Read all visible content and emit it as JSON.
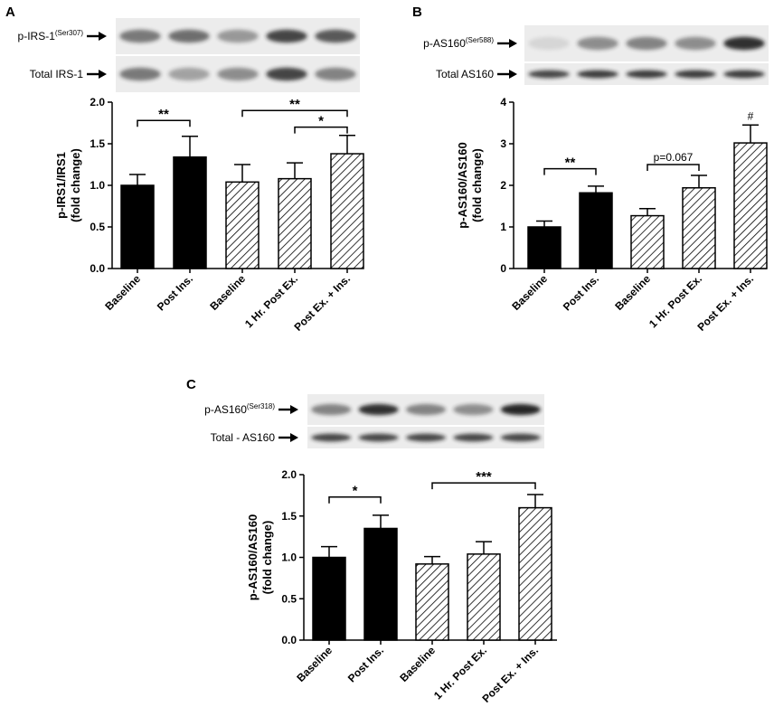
{
  "colors": {
    "solid": "#000000",
    "hatch": "#000000",
    "blot_bg": "#ececec",
    "band": "#1a1a1a"
  },
  "chart_data": [
    {
      "panel": "A",
      "type": "bar",
      "categories": [
        "Baseline",
        "Post Ins.",
        "Baseline",
        "1 Hr. Post Ex.",
        "Post Ex. + Ins."
      ],
      "values": [
        1.0,
        1.34,
        1.04,
        1.08,
        1.38
      ],
      "errors": [
        0.13,
        0.25,
        0.21,
        0.19,
        0.22
      ],
      "fills": [
        "solid",
        "solid",
        "hatch",
        "hatch",
        "hatch"
      ],
      "ylabel_line1": "p-IRS1/IRS1",
      "ylabel_line2": "(fold change)",
      "ylim": [
        0,
        2.0
      ],
      "yticks": [
        "0.0",
        "0.5",
        "1.0",
        "1.5",
        "2.0"
      ],
      "blots": [
        {
          "label": "p-IRS-1",
          "sup": "(Ser307)",
          "intensities": [
            0.55,
            0.6,
            0.4,
            0.8,
            0.7
          ]
        },
        {
          "label": "Total IRS-1",
          "sup": "",
          "intensities": [
            0.55,
            0.35,
            0.45,
            0.8,
            0.5
          ]
        }
      ],
      "significance": [
        {
          "from": 0,
          "to": 1,
          "label": "**",
          "level": 1.78
        },
        {
          "from": 2,
          "to": 4,
          "label": "**",
          "level": 1.9
        },
        {
          "from": 3,
          "to": 4,
          "label": "*",
          "level": 1.7
        }
      ]
    },
    {
      "panel": "B",
      "type": "bar",
      "categories": [
        "Baseline",
        "Post Ins.",
        "Baseline",
        "1 Hr. Post Ex.",
        "Post Ex. + Ins."
      ],
      "values": [
        1.0,
        1.82,
        1.27,
        1.94,
        3.02
      ],
      "errors": [
        0.14,
        0.16,
        0.17,
        0.3,
        0.43
      ],
      "fills": [
        "solid",
        "solid",
        "hatch",
        "hatch",
        "hatch"
      ],
      "ylabel_line1": "p-AS160/AS160",
      "ylabel_line2": "(fold change)",
      "ylim": [
        0,
        4
      ],
      "yticks": [
        "0",
        "1",
        "2",
        "3",
        "4"
      ],
      "blots": [
        {
          "label": "p-AS160",
          "sup": "(Ser588)",
          "intensities": [
            0.1,
            0.45,
            0.5,
            0.45,
            0.9
          ]
        },
        {
          "label": "Total AS160",
          "sup": "",
          "intensities": [
            0.8,
            0.85,
            0.85,
            0.85,
            0.85
          ]
        }
      ],
      "significance": [
        {
          "from": 0,
          "to": 1,
          "label": "**",
          "level": 2.4
        },
        {
          "from": 2,
          "to": 3,
          "label": "p=0.067",
          "level": 2.5
        }
      ],
      "annotations": [
        {
          "bar": 4,
          "label": "#"
        }
      ]
    },
    {
      "panel": "C",
      "type": "bar",
      "categories": [
        "Baseline",
        "Post Ins.",
        "Baseline",
        "1 Hr. Post Ex.",
        "Post Ex. + Ins."
      ],
      "values": [
        1.0,
        1.35,
        0.92,
        1.04,
        1.6
      ],
      "errors": [
        0.13,
        0.16,
        0.09,
        0.15,
        0.16
      ],
      "fills": [
        "solid",
        "solid",
        "hatch",
        "hatch",
        "hatch"
      ],
      "ylabel_line1": "p-AS160/AS160",
      "ylabel_line2": "(fold change)",
      "ylim": [
        0,
        2.0
      ],
      "yticks": [
        "0.0",
        "0.5",
        "1.0",
        "1.5",
        "2.0"
      ],
      "blots": [
        {
          "label": "p-AS160",
          "sup": "(Ser318)",
          "intensities": [
            0.5,
            0.9,
            0.5,
            0.45,
            0.95
          ]
        },
        {
          "label": "Total - AS160",
          "sup": "",
          "intensities": [
            0.8,
            0.8,
            0.8,
            0.8,
            0.8
          ]
        }
      ],
      "significance": [
        {
          "from": 0,
          "to": 1,
          "label": "*",
          "level": 1.73
        },
        {
          "from": 2,
          "to": 4,
          "label": "***",
          "level": 1.9
        }
      ]
    }
  ]
}
